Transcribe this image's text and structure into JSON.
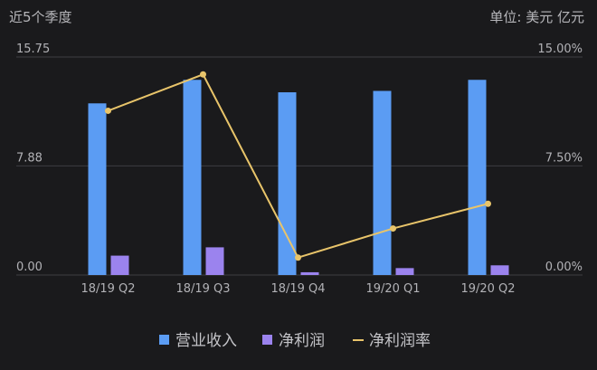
{
  "header": {
    "left_label": "近5个季度",
    "unit_label": "单位: 美元 亿元"
  },
  "colors": {
    "revenue": "#5b9cf3",
    "profit": "#9b83ee",
    "margin": "#e8c46a",
    "grid": "#3d3d42",
    "text": "#b2b2b6"
  },
  "chart_data": {
    "type": "bar",
    "categories": [
      "18/19 Q2",
      "18/19 Q3",
      "18/19 Q4",
      "19/20 Q1",
      "19/20 Q2"
    ],
    "series": [
      {
        "name": "营业收入",
        "type": "bar",
        "axis": "left",
        "values": [
          12.4,
          14.1,
          13.2,
          13.3,
          14.1
        ]
      },
      {
        "name": "净利润",
        "type": "bar",
        "axis": "left",
        "values": [
          1.4,
          2.0,
          0.2,
          0.5,
          0.7
        ]
      },
      {
        "name": "净利润率",
        "type": "line",
        "axis": "right",
        "values": [
          11.3,
          13.8,
          1.2,
          3.2,
          4.9
        ]
      }
    ],
    "y_left": {
      "ticks": [
        "0.00",
        "7.88",
        "15.75"
      ],
      "range": [
        0,
        15.75
      ]
    },
    "y_right": {
      "ticks": [
        "0.00%",
        "7.50%",
        "15.00%"
      ],
      "range": [
        0,
        15
      ]
    },
    "grid": true,
    "legend_position": "bottom"
  }
}
